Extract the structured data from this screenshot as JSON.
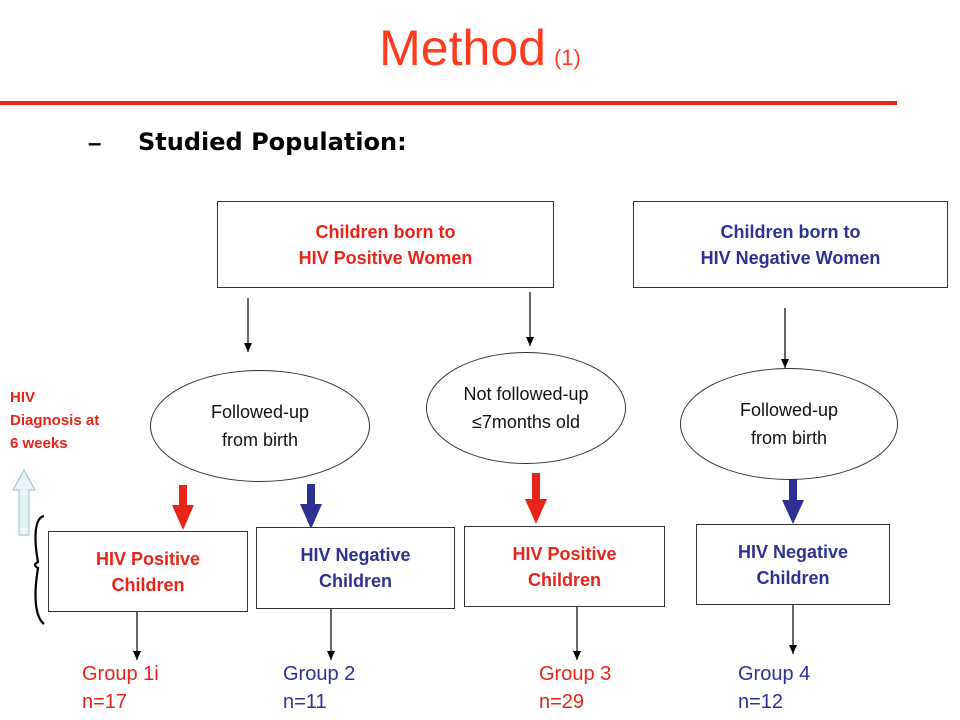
{
  "title": {
    "main": "Method",
    "sub": "(1)"
  },
  "section": {
    "dash": "–",
    "heading": "Studied Population:"
  },
  "top_boxes": {
    "positive": {
      "line1": "Children born to",
      "line2": "HIV Positive Women"
    },
    "negative": {
      "line1": "Children born to",
      "line2": "HIV Negative Women"
    }
  },
  "ellipses": {
    "followed_left": {
      "line1": "Followed-up",
      "line2": "from birth"
    },
    "not_followed": {
      "line1": "Not followed-up",
      "line2": "≤7months old"
    },
    "followed_right": {
      "line1": "Followed-up",
      "line2": "from birth"
    }
  },
  "outcome_boxes": {
    "box1": {
      "line1": "HIV Positive",
      "line2": "Children"
    },
    "box2": {
      "line1": "HIV Negative",
      "line2": "Children"
    },
    "box3": {
      "line1": "HIV Positive",
      "line2": "Children"
    },
    "box4": {
      "line1": "HIV Negative",
      "line2": "Children"
    }
  },
  "groups": {
    "g1": {
      "name": "Group 1i",
      "n": "n=17"
    },
    "g2": {
      "name": "Group 2",
      "n": "n=11"
    },
    "g3": {
      "name": "Group 3",
      "n": "n=29"
    },
    "g4": {
      "name": "Group 4",
      "n": "n=12"
    }
  },
  "side_note": {
    "line1": "HIV",
    "line2": "Diagnosis at",
    "line3": "6 weeks"
  },
  "colors": {
    "red": "#e8231a",
    "blue": "#2e3192",
    "title": "#ff3b1f"
  }
}
